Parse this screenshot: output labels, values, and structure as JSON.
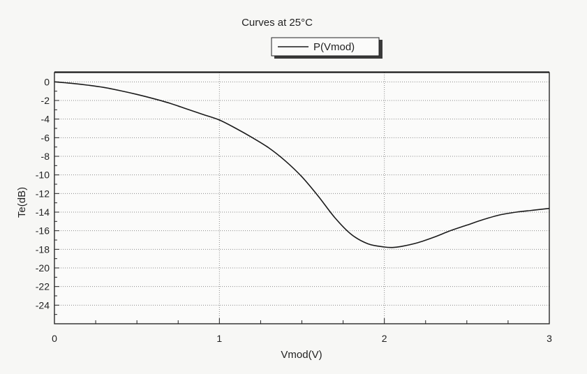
{
  "chart_data": {
    "type": "line",
    "title": "Curves at 25°C",
    "xlabel": "Vmod(V)",
    "ylabel": "Te(dB)",
    "xlim": [
      0,
      3
    ],
    "ylim": [
      -26,
      1
    ],
    "x_ticks": [
      0,
      1,
      2,
      3
    ],
    "x_tick_labels": [
      "0",
      "1",
      "2",
      "3"
    ],
    "y_ticks": [
      0,
      -2,
      -4,
      -6,
      -8,
      -10,
      -12,
      -14,
      -16,
      -18,
      -20,
      -22,
      -24
    ],
    "y_tick_labels": [
      "0",
      "-2",
      "-4",
      "-6",
      "-8",
      "-10",
      "-12",
      "-14",
      "-16",
      "-18",
      "-20",
      "-22",
      "-24"
    ],
    "grid": true,
    "legend_position": "top-center",
    "series": [
      {
        "name": "P(Vmod)",
        "color": "#1a1a1a",
        "x": [
          0,
          0.1,
          0.2,
          0.3,
          0.4,
          0.5,
          0.6,
          0.7,
          0.8,
          0.9,
          1.0,
          1.1,
          1.2,
          1.3,
          1.4,
          1.5,
          1.6,
          1.7,
          1.8,
          1.9,
          2.0,
          2.05,
          2.1,
          2.2,
          2.3,
          2.4,
          2.5,
          2.6,
          2.7,
          2.8,
          2.9,
          3.0
        ],
        "y": [
          0,
          -0.15,
          -0.35,
          -0.6,
          -0.95,
          -1.35,
          -1.8,
          -2.3,
          -2.9,
          -3.5,
          -4.1,
          -5.0,
          -6.0,
          -7.1,
          -8.5,
          -10.2,
          -12.3,
          -14.6,
          -16.4,
          -17.4,
          -17.75,
          -17.8,
          -17.7,
          -17.3,
          -16.7,
          -16.0,
          -15.4,
          -14.8,
          -14.3,
          -14.0,
          -13.8,
          -13.6
        ]
      }
    ]
  }
}
